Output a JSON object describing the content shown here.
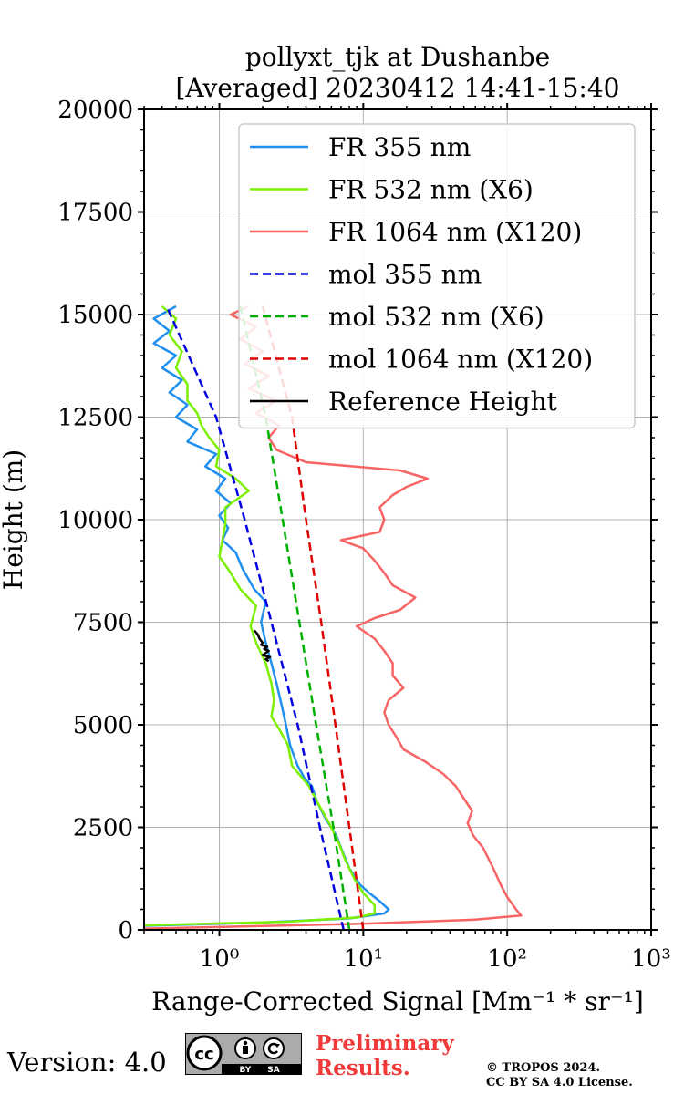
{
  "footer": {
    "version": "Version: 4.0",
    "badge": {
      "cc": "cc",
      "by": "BY",
      "sa": "SA"
    },
    "preliminary_line1": "Preliminary",
    "preliminary_line2": "Results.",
    "copyright_line1": "© TROPOS 2024.",
    "copyright_line2": "CC BY SA 4.0 License."
  },
  "chart_data": {
    "type": "line",
    "title_line1": "pollyxt_tjk at Dushanbe",
    "title_line2": "[Averaged] 20230412 14:41-15:40",
    "xlabel": "Range-Corrected Signal [Mm⁻¹ * sr⁻¹]",
    "ylabel": "Height (m)",
    "xscale": "log",
    "xlim": [
      0.3,
      1000
    ],
    "ylim": [
      0,
      20000
    ],
    "x_ticks": [
      {
        "v": 1,
        "label": "10⁰"
      },
      {
        "v": 10,
        "label": "10¹"
      },
      {
        "v": 100,
        "label": "10²"
      },
      {
        "v": 1000,
        "label": "10³"
      }
    ],
    "y_ticks": [
      0,
      2500,
      5000,
      7500,
      10000,
      12500,
      15000,
      17500,
      20000
    ],
    "y_tick_labels": [
      "0",
      "2500",
      "5000",
      "7500",
      "10000",
      "12500",
      "15000",
      "17500",
      "20000"
    ],
    "grid": true,
    "legend_position": "upper-right",
    "series": [
      {
        "name": "FR 355 nm",
        "color": "#1f8ff0",
        "style": "solid",
        "points": [
          [
            0.3,
            100
          ],
          [
            2,
            180
          ],
          [
            8,
            280
          ],
          [
            14,
            400
          ],
          [
            15,
            500
          ],
          [
            13,
            700
          ],
          [
            11,
            900
          ],
          [
            9.5,
            1100
          ],
          [
            8,
            1500
          ],
          [
            7,
            2000
          ],
          [
            6.5,
            2300
          ],
          [
            5.5,
            2700
          ],
          [
            4.8,
            3100
          ],
          [
            4.4,
            3500
          ],
          [
            3.9,
            3700
          ],
          [
            3.5,
            4000
          ],
          [
            3.1,
            4500
          ],
          [
            2.9,
            5000
          ],
          [
            2.7,
            5500
          ],
          [
            2.5,
            6000
          ],
          [
            2.3,
            6500
          ],
          [
            2.1,
            7000
          ],
          [
            1.95,
            7500
          ],
          [
            2.1,
            8000
          ],
          [
            1.75,
            8300
          ],
          [
            1.45,
            8800
          ],
          [
            1.3,
            9200
          ],
          [
            1.05,
            9500
          ],
          [
            1.15,
            9800
          ],
          [
            1.0,
            10100
          ],
          [
            1.2,
            10400
          ],
          [
            0.95,
            10700
          ],
          [
            1.1,
            11000
          ],
          [
            0.8,
            11300
          ],
          [
            0.95,
            11600
          ],
          [
            0.6,
            11900
          ],
          [
            0.7,
            12200
          ],
          [
            0.5,
            12500
          ],
          [
            0.6,
            12800
          ],
          [
            0.45,
            13100
          ],
          [
            0.55,
            13400
          ],
          [
            0.4,
            13700
          ],
          [
            0.5,
            14000
          ],
          [
            0.35,
            14300
          ],
          [
            0.45,
            14600
          ],
          [
            0.35,
            14900
          ],
          [
            0.5,
            15200
          ]
        ]
      },
      {
        "name": "FR 532 nm (X6)",
        "color": "#7cf000",
        "style": "solid",
        "points": [
          [
            0.3,
            110
          ],
          [
            3,
            200
          ],
          [
            9,
            300
          ],
          [
            12,
            400
          ],
          [
            12,
            600
          ],
          [
            10,
            900
          ],
          [
            8.8,
            1200
          ],
          [
            7.5,
            1700
          ],
          [
            6.8,
            2100
          ],
          [
            5.8,
            2600
          ],
          [
            5,
            3000
          ],
          [
            4.2,
            3500
          ],
          [
            3.2,
            4000
          ],
          [
            3.0,
            4500
          ],
          [
            2.6,
            4900
          ],
          [
            2.3,
            5200
          ],
          [
            2.4,
            5600
          ],
          [
            2.3,
            6000
          ],
          [
            2.1,
            6500
          ],
          [
            1.8,
            7000
          ],
          [
            1.65,
            7400
          ],
          [
            1.8,
            7900
          ],
          [
            1.4,
            8300
          ],
          [
            1.2,
            8700
          ],
          [
            1.0,
            9100
          ],
          [
            1.05,
            9500
          ],
          [
            1.1,
            9900
          ],
          [
            1.1,
            10300
          ],
          [
            1.6,
            10700
          ],
          [
            1.3,
            11000
          ],
          [
            0.95,
            11300
          ],
          [
            1.0,
            11700
          ],
          [
            0.85,
            12000
          ],
          [
            0.75,
            12300
          ],
          [
            0.7,
            12600
          ],
          [
            0.6,
            12900
          ],
          [
            0.6,
            13300
          ],
          [
            0.5,
            13700
          ],
          [
            0.55,
            14100
          ],
          [
            0.45,
            14500
          ],
          [
            0.5,
            14900
          ],
          [
            0.4,
            15200
          ]
        ]
      },
      {
        "name": "FR 1064 nm (X120)",
        "color": "#f86464",
        "style": "solid",
        "points": [
          [
            0.3,
            30
          ],
          [
            10,
            150
          ],
          [
            60,
            250
          ],
          [
            125,
            350
          ],
          [
            115,
            500
          ],
          [
            100,
            800
          ],
          [
            90,
            1100
          ],
          [
            80,
            1500
          ],
          [
            68,
            2000
          ],
          [
            58,
            2300
          ],
          [
            53,
            2600
          ],
          [
            57,
            2900
          ],
          [
            50,
            3200
          ],
          [
            44,
            3500
          ],
          [
            36,
            3800
          ],
          [
            27,
            4100
          ],
          [
            19,
            4400
          ],
          [
            17,
            4700
          ],
          [
            15,
            5000
          ],
          [
            14,
            5300
          ],
          [
            15,
            5600
          ],
          [
            19,
            5900
          ],
          [
            16,
            6200
          ],
          [
            16,
            6500
          ],
          [
            14,
            6800
          ],
          [
            12,
            7100
          ],
          [
            9,
            7400
          ],
          [
            12,
            7600
          ],
          [
            18,
            7800
          ],
          [
            23,
            8100
          ],
          [
            16,
            8400
          ],
          [
            14,
            8700
          ],
          [
            12,
            9000
          ],
          [
            10,
            9300
          ],
          [
            7,
            9500
          ],
          [
            13,
            9700
          ],
          [
            14,
            10000
          ],
          [
            13,
            10300
          ],
          [
            16,
            10600
          ],
          [
            20,
            10800
          ],
          [
            28,
            11000
          ],
          [
            18,
            11200
          ],
          [
            4,
            11400
          ],
          [
            2.5,
            11700
          ],
          [
            2.2,
            12000
          ],
          [
            2.6,
            12300
          ],
          [
            1.8,
            12600
          ],
          [
            2.5,
            12900
          ],
          [
            1.6,
            13200
          ],
          [
            2.2,
            13500
          ],
          [
            1.5,
            13800
          ],
          [
            2.0,
            14100
          ],
          [
            1.4,
            14400
          ],
          [
            1.8,
            14700
          ],
          [
            1.2,
            15000
          ],
          [
            1.6,
            15200
          ]
        ]
      },
      {
        "name": "mol 355 nm",
        "color": "#0000e0",
        "style": "dashed",
        "points": [
          [
            7.3,
            0
          ],
          [
            5.0,
            2500
          ],
          [
            3.5,
            5000
          ],
          [
            2.3,
            7500
          ],
          [
            1.5,
            10000
          ],
          [
            0.95,
            12500
          ],
          [
            0.43,
            15200
          ]
        ]
      },
      {
        "name": "mol 532 nm (X6)",
        "color": "#00b000",
        "style": "dashed",
        "points": [
          [
            8.0,
            0
          ],
          [
            6.2,
            2500
          ],
          [
            4.7,
            5000
          ],
          [
            3.6,
            7500
          ],
          [
            2.75,
            10000
          ],
          [
            2.1,
            12500
          ],
          [
            1.4,
            15200
          ]
        ]
      },
      {
        "name": "mol 1064 nm (X120)",
        "color": "#e00000",
        "style": "dashed",
        "points": [
          [
            10.0,
            0
          ],
          [
            8.0,
            2500
          ],
          [
            6.4,
            5000
          ],
          [
            5.1,
            7500
          ],
          [
            4.0,
            10000
          ],
          [
            3.2,
            12500
          ],
          [
            2.0,
            15200
          ]
        ]
      },
      {
        "name": "Reference Height",
        "color": "#000000",
        "style": "solid",
        "points": [
          [
            1.75,
            7300
          ],
          [
            1.85,
            7200
          ],
          [
            1.9,
            7100
          ],
          [
            2.0,
            7000
          ],
          [
            1.95,
            6950
          ],
          [
            2.15,
            6900
          ],
          [
            2.05,
            6850
          ],
          [
            2.2,
            6800
          ],
          [
            2.0,
            6700
          ],
          [
            2.25,
            6650
          ],
          [
            2.1,
            6600
          ],
          [
            2.2,
            6550
          ]
        ]
      }
    ]
  }
}
